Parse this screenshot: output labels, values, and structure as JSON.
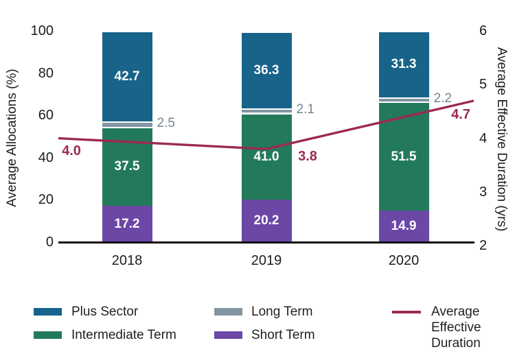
{
  "chart_data": {
    "type": "bar",
    "stacked": true,
    "overlay": "line",
    "title": "",
    "categories": [
      "2018",
      "2019",
      "2020"
    ],
    "series": [
      {
        "name": "Short Term",
        "color": "#6b47a6",
        "values": [
          17.2,
          20.2,
          14.9
        ],
        "labels": [
          "17.2",
          "20.2",
          "14.9"
        ],
        "label_style": "inside-white"
      },
      {
        "name": "Intermediate Term",
        "color": "#237a5b",
        "values": [
          37.5,
          41.0,
          51.5
        ],
        "labels": [
          "37.5",
          "41.0",
          "51.5"
        ],
        "label_style": "inside-white"
      },
      {
        "name": "Long Term",
        "color": "#8296a4",
        "values": [
          2.5,
          2.1,
          2.2
        ],
        "labels": [
          "2.5",
          "2.1",
          "2.2"
        ],
        "label_style": "outside-right-gray"
      },
      {
        "name": "Plus Sector",
        "color": "#176389",
        "values": [
          42.7,
          36.3,
          31.3
        ],
        "labels": [
          "42.7",
          "36.3",
          "31.3"
        ],
        "label_style": "inside-white"
      }
    ],
    "line_series": {
      "name": "Average Effective Duration",
      "color": "#9c2a51",
      "values": [
        4.0,
        3.8,
        4.7
      ],
      "labels": [
        "4.0",
        "3.8",
        "4.7"
      ]
    },
    "left_axis": {
      "label": "Average Allocations (%)",
      "ticks": [
        100,
        80,
        60,
        40,
        20,
        0
      ],
      "range": [
        0,
        100
      ]
    },
    "right_axis": {
      "label": "Average Effective Duration (yrs)",
      "ticks": [
        6,
        5,
        4,
        3,
        2
      ],
      "range": [
        2,
        6
      ]
    },
    "legend": [
      {
        "label": "Plus Sector",
        "color": "#176389",
        "shape": "bar"
      },
      {
        "label": "Intermediate Term",
        "color": "#237a5b",
        "shape": "bar"
      },
      {
        "label": "Long Term",
        "color": "#8296a4",
        "shape": "bar"
      },
      {
        "label": "Short Term",
        "color": "#6b47a6",
        "shape": "bar"
      },
      {
        "label": "Average Effective Duration",
        "color": "#9c2a51",
        "shape": "line"
      }
    ],
    "grid": false,
    "legend_position": "bottom",
    "style": {
      "outside_label_color": "#75838f",
      "tick_color": "#1c1c1c",
      "background": "#ffffff"
    }
  }
}
